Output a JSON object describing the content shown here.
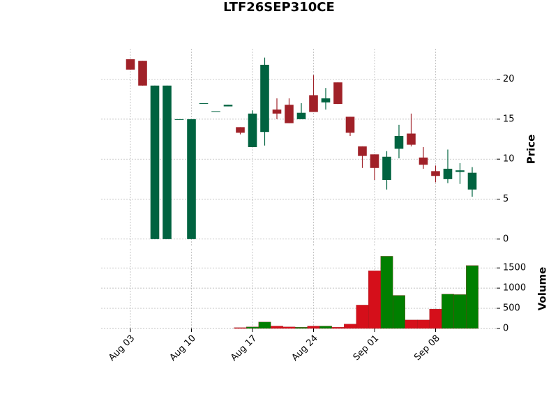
{
  "chart_data": {
    "type": "candlestick",
    "title": "LTF26SEP310CE",
    "ylabel": "Price",
    "volume_label": "Volume",
    "categories": [
      "Aug 03",
      null,
      null,
      null,
      null,
      "Aug 10",
      null,
      null,
      null,
      null,
      "Aug 17",
      null,
      null,
      null,
      null,
      "Aug 24",
      null,
      null,
      null,
      null,
      "Sep 01",
      null,
      null,
      null,
      null,
      "Sep 08",
      null,
      null,
      null
    ],
    "open": [
      22.5,
      22.3,
      0,
      0,
      15.0,
      0,
      17.0,
      16.0,
      16.6,
      14.0,
      11.5,
      13.4,
      16.2,
      16.8,
      15.0,
      18.0,
      17.1,
      19.6,
      15.3,
      11.6,
      10.6,
      7.4,
      11.3,
      13.2,
      10.2,
      8.5,
      7.5,
      8.4,
      6.2
    ],
    "high": [
      22.5,
      22.3,
      19.2,
      19.2,
      15.0,
      15.0,
      17.0,
      16.0,
      16.8,
      14.0,
      16.1,
      22.7,
      17.6,
      17.6,
      17.0,
      20.5,
      18.9,
      19.6,
      15.3,
      11.6,
      10.6,
      11.0,
      14.3,
      15.7,
      11.5,
      9.2,
      11.2,
      9.5,
      9.0
    ],
    "low": [
      21.2,
      19.2,
      0,
      0,
      15.0,
      0,
      17.0,
      16.0,
      16.6,
      13.1,
      11.5,
      11.7,
      15.0,
      14.5,
      15.0,
      15.9,
      16.2,
      16.9,
      12.9,
      8.9,
      7.4,
      6.2,
      10.1,
      11.6,
      8.8,
      7.1,
      7.0,
      6.9,
      5.3
    ],
    "close": [
      21.2,
      19.2,
      19.2,
      19.2,
      15.0,
      15.0,
      17.0,
      16.0,
      16.8,
      13.3,
      15.7,
      21.8,
      15.7,
      14.5,
      15.8,
      15.9,
      17.6,
      16.9,
      13.3,
      10.4,
      8.9,
      10.3,
      12.9,
      11.8,
      9.3,
      7.9,
      8.8,
      8.6,
      8.3
    ],
    "volume": [
      0,
      0,
      0,
      0,
      0,
      0,
      0,
      0,
      0,
      20,
      40,
      160,
      60,
      40,
      30,
      60,
      60,
      30,
      110,
      580,
      1430,
      1790,
      820,
      210,
      210,
      480,
      850,
      840,
      1560
    ],
    "up_color": "#006340",
    "down_color": "#a02128",
    "volume_up_color": "#007f00",
    "volume_down_color": "#d50f1a",
    "xlim": [
      -2.4,
      30
    ],
    "ylim": [
      -0.8,
      23.8
    ],
    "yticks": [
      0,
      5,
      10,
      15,
      20
    ],
    "volume_ylim": [
      0,
      1970
    ],
    "volume_ticks": [
      0,
      500,
      1000,
      1500
    ],
    "grid": true
  }
}
